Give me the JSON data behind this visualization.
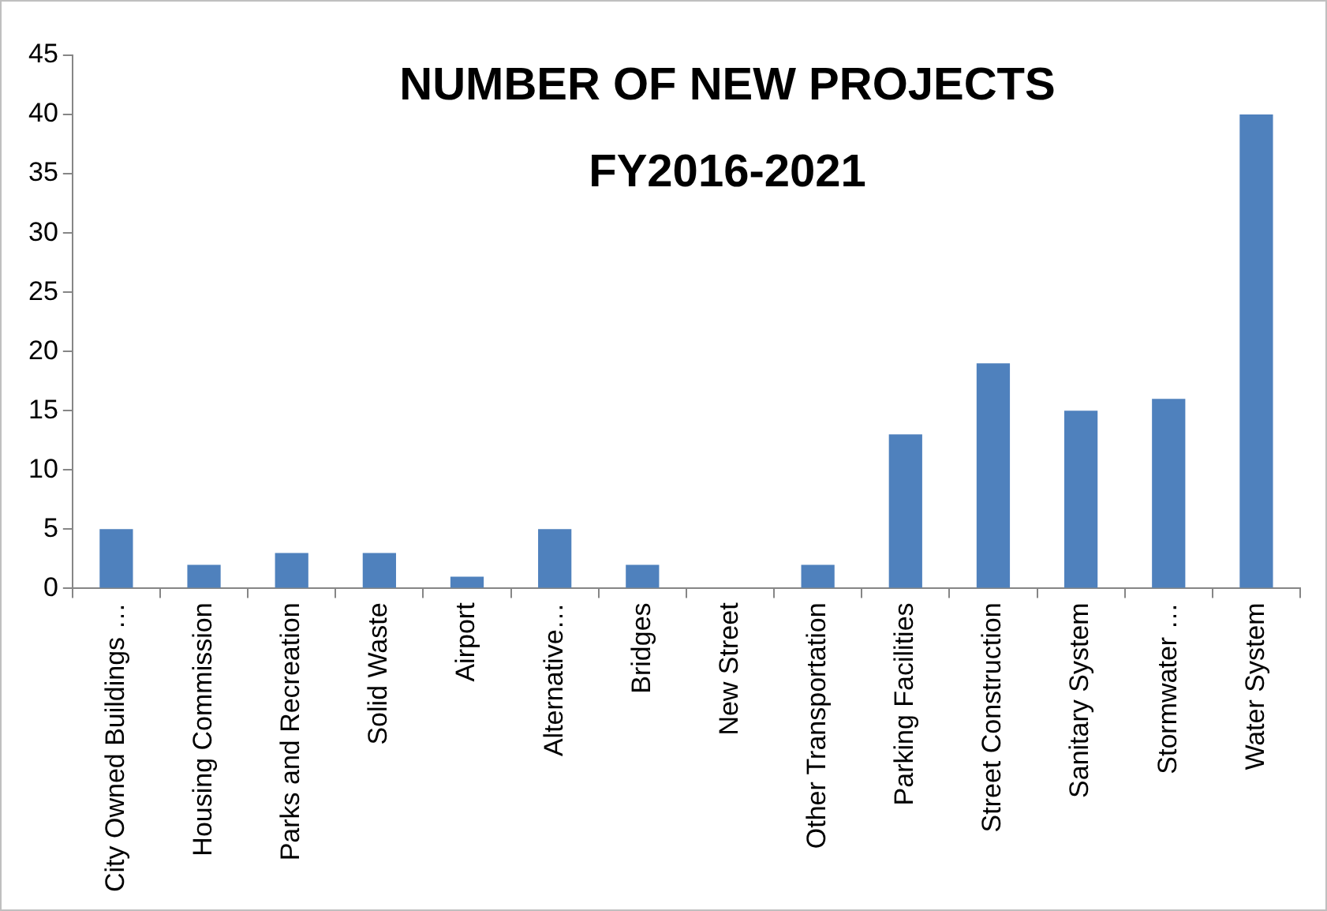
{
  "chart_data": {
    "type": "bar",
    "title": [
      "NUMBER OF NEW PROJECTS",
      "FY2016-2021"
    ],
    "categories": [
      "City Owned Buildings …",
      "Housing Commission",
      "Parks and Recreation",
      "Solid Waste",
      "Airport",
      "Alternative…",
      "Bridges",
      "New Street",
      "Other Transportation",
      "Parking Facilities",
      "Street Construction",
      "Sanitary System",
      "Stormwater …",
      "Water System"
    ],
    "values": [
      5,
      2,
      3,
      3,
      1,
      5,
      2,
      0,
      2,
      13,
      19,
      15,
      16,
      40
    ],
    "color": "#4f81bd",
    "ylim": [
      0,
      45
    ],
    "yticks": [
      0,
      5,
      10,
      15,
      20,
      25,
      30,
      35,
      40,
      45
    ],
    "grid": false,
    "legend": false
  }
}
